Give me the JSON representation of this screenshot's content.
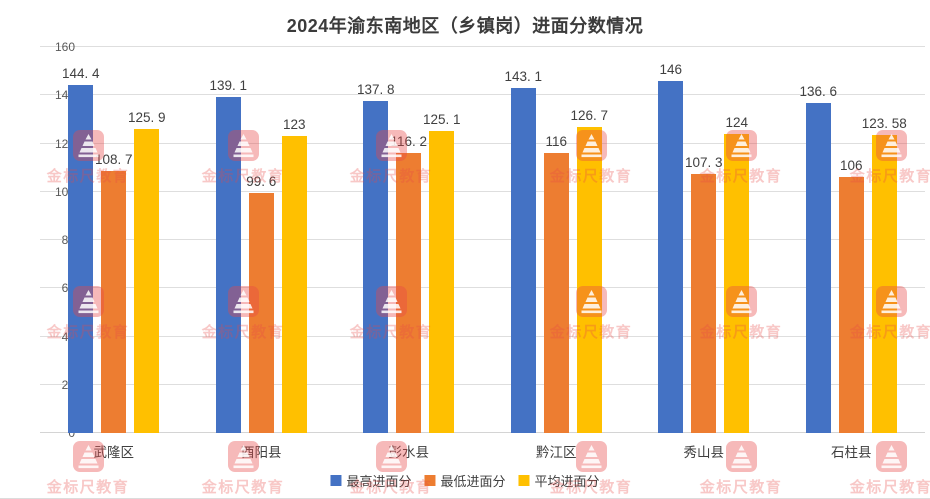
{
  "title": "2024年渝东南地区（乡镇岗）进面分数情况",
  "chart_data": {
    "type": "bar",
    "categories": [
      "武隆区",
      "酉阳县",
      "彭水县",
      "黔江区",
      "秀山县",
      "石柱县"
    ],
    "series": [
      {
        "name": "最高进面分",
        "color": "#4472C4",
        "values": [
          144.4,
          139.1,
          137.8,
          143.1,
          146,
          136.6
        ],
        "labels": [
          "144. 4",
          "139. 1",
          "137. 8",
          "143. 1",
          "146",
          "136. 6"
        ]
      },
      {
        "name": "最低进面分",
        "color": "#ED7D31",
        "values": [
          108.7,
          99.6,
          116.2,
          116,
          107.3,
          106
        ],
        "labels": [
          "108. 7",
          "99. 6",
          "116. 2",
          "116",
          "107. 3",
          "106"
        ]
      },
      {
        "name": "平均进面分",
        "color": "#FFC000",
        "values": [
          125.9,
          123,
          125.1,
          126.7,
          124,
          123.58
        ],
        "labels": [
          "125. 9",
          "123",
          "125. 1",
          "126. 7",
          "124",
          "123. 58"
        ]
      }
    ],
    "ylim": [
      0,
      160
    ],
    "yticks": [
      0,
      20,
      40,
      60,
      80,
      100,
      120,
      140,
      160
    ],
    "grid": true,
    "legend_position": "bottom",
    "xlabel": "",
    "ylabel": ""
  },
  "watermark": {
    "text": "金标尺教育",
    "logo": "pyramid-logo",
    "color": "#E74846"
  }
}
